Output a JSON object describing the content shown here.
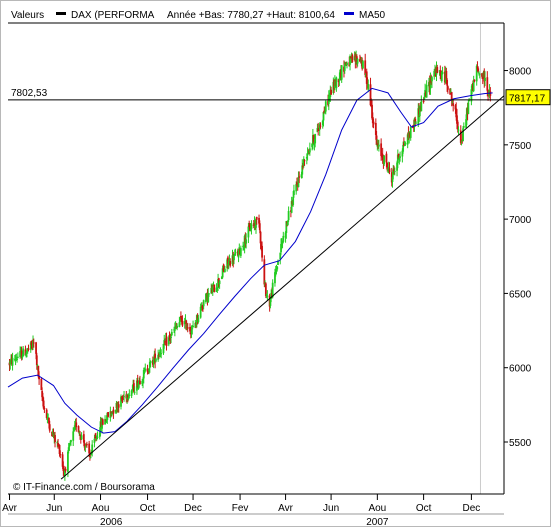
{
  "legend": {
    "label": "Valeurs",
    "series_name": "DAX (PERFORMA",
    "stats": "Année +Bas: 7780,27 +Haut: 8100,64",
    "ma_name": "MA50"
  },
  "colors": {
    "up": "#22cc22",
    "down": "#cc1111",
    "ma": "#0000cc",
    "trend": "#000000",
    "grid": "#cccccc"
  },
  "watermark": "© IT-Finance.com / Boursorama",
  "hline": {
    "value": 7802.53,
    "label": "7802,53"
  },
  "last_price": {
    "value": 7817.17,
    "label": "7817,17"
  },
  "chart_data": {
    "type": "candlestick",
    "yaxis": {
      "min": 5150,
      "max": 8320,
      "ticks": [
        5500,
        6000,
        6500,
        7000,
        7500,
        8000
      ]
    },
    "xaxis": {
      "start": "2006-04-01",
      "end": "2008-01-15",
      "months": [
        {
          "label": "Avr",
          "date": "2006-04-03"
        },
        {
          "label": "Jun",
          "date": "2006-06-01"
        },
        {
          "label": "Aou",
          "date": "2006-08-01"
        },
        {
          "label": "Oct",
          "date": "2006-10-02"
        },
        {
          "label": "Dec",
          "date": "2006-12-01"
        },
        {
          "label": "Fev",
          "date": "2007-02-01"
        },
        {
          "label": "Avr",
          "date": "2007-04-02"
        },
        {
          "label": "Jun",
          "date": "2007-06-01"
        },
        {
          "label": "Aou",
          "date": "2007-08-01"
        },
        {
          "label": "Oct",
          "date": "2007-10-01"
        },
        {
          "label": "Dec",
          "date": "2007-12-03"
        }
      ],
      "years": [
        {
          "label": "2006",
          "date": "2006-08-15"
        },
        {
          "label": "2007",
          "date": "2007-08-01"
        }
      ],
      "grid_date": "2007-12-15"
    },
    "price_path": [
      [
        "2006-04-03",
        6030
      ],
      [
        "2006-04-15",
        6080
      ],
      [
        "2006-04-28",
        6120
      ],
      [
        "2006-05-06",
        6170
      ],
      [
        "2006-05-12",
        5900
      ],
      [
        "2006-05-20",
        5700
      ],
      [
        "2006-05-30",
        5550
      ],
      [
        "2006-06-08",
        5450
      ],
      [
        "2006-06-14",
        5290
      ],
      [
        "2006-06-22",
        5480
      ],
      [
        "2006-06-30",
        5620
      ],
      [
        "2006-07-10",
        5500
      ],
      [
        "2006-07-18",
        5400
      ],
      [
        "2006-07-25",
        5520
      ],
      [
        "2006-08-02",
        5620
      ],
      [
        "2006-08-15",
        5700
      ],
      [
        "2006-08-31",
        5800
      ],
      [
        "2006-09-15",
        5870
      ],
      [
        "2006-09-30",
        5980
      ],
      [
        "2006-10-15",
        6090
      ],
      [
        "2006-10-31",
        6200
      ],
      [
        "2006-11-15",
        6320
      ],
      [
        "2006-11-30",
        6250
      ],
      [
        "2006-12-15",
        6450
      ],
      [
        "2006-12-31",
        6550
      ],
      [
        "2007-01-15",
        6700
      ],
      [
        "2007-01-31",
        6780
      ],
      [
        "2007-02-15",
        6950
      ],
      [
        "2007-02-26",
        7000
      ],
      [
        "2007-03-05",
        6550
      ],
      [
        "2007-03-12",
        6430
      ],
      [
        "2007-03-20",
        6650
      ],
      [
        "2007-03-31",
        6900
      ],
      [
        "2007-04-15",
        7200
      ],
      [
        "2007-04-30",
        7450
      ],
      [
        "2007-05-15",
        7600
      ],
      [
        "2007-05-31",
        7850
      ],
      [
        "2007-06-10",
        7950
      ],
      [
        "2007-06-20",
        8050
      ],
      [
        "2007-07-10",
        8080
      ],
      [
        "2007-07-20",
        7900
      ],
      [
        "2007-07-31",
        7500
      ],
      [
        "2007-08-10",
        7400
      ],
      [
        "2007-08-20",
        7280
      ],
      [
        "2007-08-31",
        7450
      ],
      [
        "2007-09-15",
        7600
      ],
      [
        "2007-09-30",
        7800
      ],
      [
        "2007-10-15",
        8000
      ],
      [
        "2007-10-31",
        7950
      ],
      [
        "2007-11-10",
        7750
      ],
      [
        "2007-11-20",
        7520
      ],
      [
        "2007-11-30",
        7800
      ],
      [
        "2007-12-10",
        8000
      ],
      [
        "2007-12-20",
        7950
      ],
      [
        "2007-12-28",
        7817
      ]
    ],
    "ma_path": [
      [
        "2006-04-01",
        5870
      ],
      [
        "2006-04-20",
        5930
      ],
      [
        "2006-05-10",
        5950
      ],
      [
        "2006-05-31",
        5880
      ],
      [
        "2006-06-15",
        5760
      ],
      [
        "2006-07-01",
        5680
      ],
      [
        "2006-07-20",
        5600
      ],
      [
        "2006-08-05",
        5560
      ],
      [
        "2006-08-20",
        5570
      ],
      [
        "2006-09-05",
        5640
      ],
      [
        "2006-09-25",
        5750
      ],
      [
        "2006-10-15",
        5870
      ],
      [
        "2006-11-05",
        6000
      ],
      [
        "2006-11-25",
        6120
      ],
      [
        "2006-12-15",
        6230
      ],
      [
        "2007-01-05",
        6360
      ],
      [
        "2007-01-25",
        6480
      ],
      [
        "2007-02-15",
        6600
      ],
      [
        "2007-03-05",
        6690
      ],
      [
        "2007-03-25",
        6720
      ],
      [
        "2007-04-15",
        6850
      ],
      [
        "2007-05-05",
        7050
      ],
      [
        "2007-05-25",
        7300
      ],
      [
        "2007-06-15",
        7600
      ],
      [
        "2007-07-05",
        7800
      ],
      [
        "2007-07-25",
        7880
      ],
      [
        "2007-08-15",
        7850
      ],
      [
        "2007-09-01",
        7720
      ],
      [
        "2007-09-15",
        7620
      ],
      [
        "2007-10-01",
        7650
      ],
      [
        "2007-10-20",
        7760
      ],
      [
        "2007-11-10",
        7810
      ],
      [
        "2007-12-01",
        7830
      ],
      [
        "2007-12-20",
        7845
      ],
      [
        "2007-12-31",
        7850
      ]
    ],
    "trendline": {
      "from": [
        "2006-06-10",
        5250
      ],
      "to": [
        "2008-01-15",
        7830
      ]
    }
  }
}
